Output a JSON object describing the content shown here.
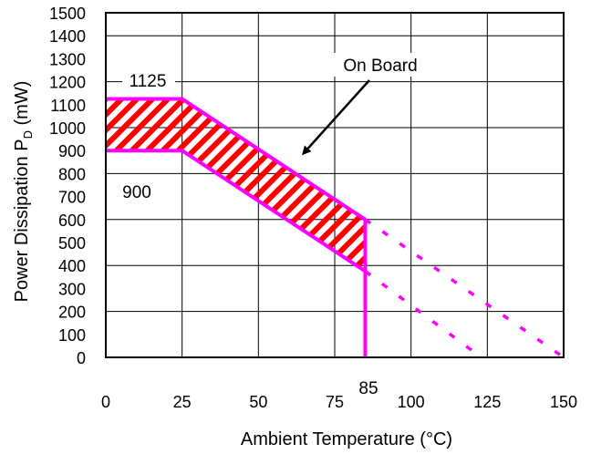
{
  "chart_data": {
    "type": "line",
    "title": "",
    "xlabel": "Ambient Temperature (°C)",
    "ylabel": {
      "prefix": "Power Dissipation ",
      "p": "P",
      "sub": "D",
      "unit": " (mW)"
    },
    "xlim": [
      0,
      150
    ],
    "ylim": [
      0,
      1500
    ],
    "xticks": [
      "0",
      "25",
      "50",
      "75",
      "100",
      "125",
      "150"
    ],
    "yticks": [
      "0",
      "100",
      "200",
      "300",
      "400",
      "500",
      "600",
      "700",
      "800",
      "900",
      "1000",
      "1100",
      "1200",
      "1300",
      "1400",
      "1500"
    ],
    "grid": true,
    "series": [
      {
        "values": [
          [
            0,
            1125
          ],
          [
            25,
            1125
          ],
          [
            85,
            600
          ]
        ],
        "style": "solid"
      },
      {
        "values": [
          [
            85,
            600
          ],
          [
            150,
            0
          ]
        ],
        "style": "dashed"
      },
      {
        "values": [
          [
            0,
            900
          ],
          [
            25,
            900
          ],
          [
            85,
            375
          ]
        ],
        "style": "solid"
      },
      {
        "values": [
          [
            85,
            375
          ],
          [
            123,
            0
          ]
        ],
        "style": "dashed"
      },
      {
        "values": [
          [
            85,
            0
          ],
          [
            85,
            600
          ]
        ],
        "style": "solid"
      }
    ],
    "shaded_region": "On Board",
    "annotations": {
      "upper": "1125",
      "lower": "900",
      "board": "On Board",
      "cutoff": "85"
    },
    "colors": {
      "line": "#ff00ff",
      "hatch": "#ff0000",
      "grid": "#000000"
    }
  }
}
